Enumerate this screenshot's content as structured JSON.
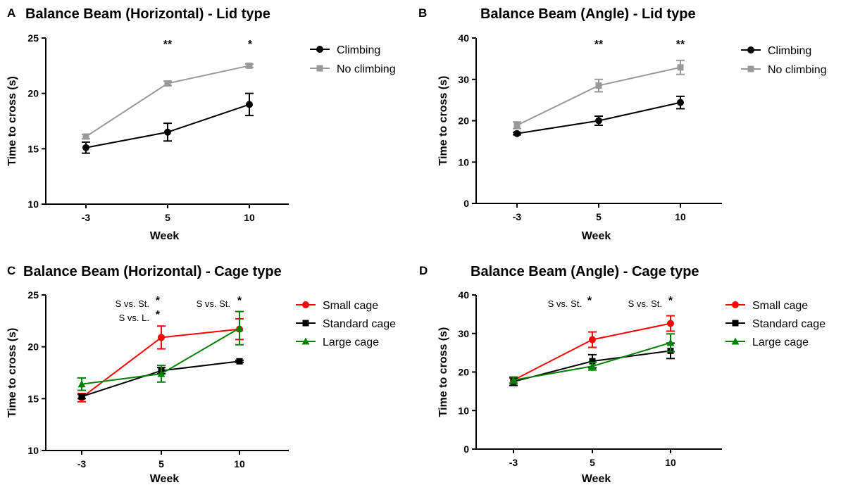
{
  "chart_data": [
    {
      "panel": "A",
      "type": "line",
      "title": "Balance Beam (Horizontal) - Lid type",
      "xlabel": "Week",
      "ylabel": "Time to cross (s)",
      "categories": [
        "-3",
        "5",
        "10"
      ],
      "ylim": [
        10,
        25
      ],
      "yticks": [
        10,
        15,
        20,
        25
      ],
      "legend_position": "right",
      "series": [
        {
          "name": "Climbing",
          "color": "#000000",
          "marker": "circle",
          "values": [
            15.1,
            16.5,
            19.0
          ],
          "errors": [
            0.5,
            0.8,
            1.0
          ]
        },
        {
          "name": "No climbing",
          "color": "#999999",
          "marker": "square",
          "values": [
            16.1,
            20.9,
            22.5
          ],
          "errors": [
            0.2,
            0.2,
            0.15
          ]
        }
      ],
      "annotations": [
        {
          "x": "5",
          "text": "**"
        },
        {
          "x": "10",
          "text": "*"
        }
      ]
    },
    {
      "panel": "B",
      "type": "line",
      "title": "Balance Beam (Angle) - Lid type",
      "xlabel": "Week",
      "ylabel": "Time to cross (s)",
      "categories": [
        "-3",
        "5",
        "10"
      ],
      "ylim": [
        0,
        40
      ],
      "yticks": [
        0,
        10,
        20,
        30,
        40
      ],
      "legend_position": "right",
      "series": [
        {
          "name": "Climbing",
          "color": "#000000",
          "marker": "circle",
          "values": [
            16.9,
            20.0,
            24.4
          ],
          "errors": [
            0.3,
            1.1,
            1.5
          ]
        },
        {
          "name": "No climbing",
          "color": "#999999",
          "marker": "square",
          "values": [
            18.9,
            28.5,
            32.9
          ],
          "errors": [
            0.8,
            1.5,
            1.7
          ]
        }
      ],
      "annotations": [
        {
          "x": "5",
          "text": "**"
        },
        {
          "x": "10",
          "text": "**"
        }
      ]
    },
    {
      "panel": "C",
      "type": "line",
      "title": "Balance Beam (Horizontal) - Cage type",
      "xlabel": "Week",
      "ylabel": "Time to cross (s)",
      "categories": [
        "-3",
        "5",
        "10"
      ],
      "ylim": [
        10,
        25
      ],
      "yticks": [
        10,
        15,
        20,
        25
      ],
      "legend_position": "right",
      "series": [
        {
          "name": "Small cage",
          "color": "#ff0000",
          "marker": "circle",
          "values": [
            15.1,
            20.9,
            21.7
          ],
          "errors": [
            0.4,
            1.1,
            1.0
          ]
        },
        {
          "name": "Standard cage",
          "color": "#000000",
          "marker": "square",
          "values": [
            15.2,
            17.7,
            18.6
          ],
          "errors": [
            0.2,
            0.3,
            0.1
          ]
        },
        {
          "name": "Large cage",
          "color": "#008000",
          "marker": "triangle",
          "values": [
            16.4,
            17.4,
            21.8
          ],
          "errors": [
            0.6,
            0.8,
            1.6
          ]
        }
      ],
      "annotations": [
        {
          "x": "5",
          "label": "S vs. St.",
          "stars": "*"
        },
        {
          "x": "5",
          "label": "S vs. L.",
          "stars": "*"
        },
        {
          "x": "10",
          "label": "S vs. St.",
          "stars": "*"
        }
      ]
    },
    {
      "panel": "D",
      "type": "line",
      "title": "Balance Beam (Angle) - Cage type",
      "xlabel": "Week",
      "ylabel": "Time to cross (s)",
      "categories": [
        "-3",
        "5",
        "10"
      ],
      "ylim": [
        0,
        40
      ],
      "yticks": [
        0,
        10,
        20,
        30,
        40
      ],
      "legend_position": "right",
      "series": [
        {
          "name": "Small cage",
          "color": "#ff0000",
          "marker": "circle",
          "values": [
            17.9,
            28.4,
            32.6
          ],
          "errors": [
            0.8,
            2.0,
            2.0
          ]
        },
        {
          "name": "Standard cage",
          "color": "#000000",
          "marker": "square",
          "values": [
            17.5,
            22.8,
            25.5
          ],
          "errors": [
            1.0,
            1.7,
            2.0
          ]
        },
        {
          "name": "Large cage",
          "color": "#008000",
          "marker": "triangle",
          "values": [
            17.9,
            21.5,
            27.6
          ],
          "errors": [
            0.8,
            1.0,
            2.3
          ]
        }
      ],
      "annotations": [
        {
          "x": "5",
          "label": "S vs. St.",
          "stars": "*"
        },
        {
          "x": "10",
          "label": "S vs. St.",
          "stars": "*"
        }
      ]
    }
  ]
}
